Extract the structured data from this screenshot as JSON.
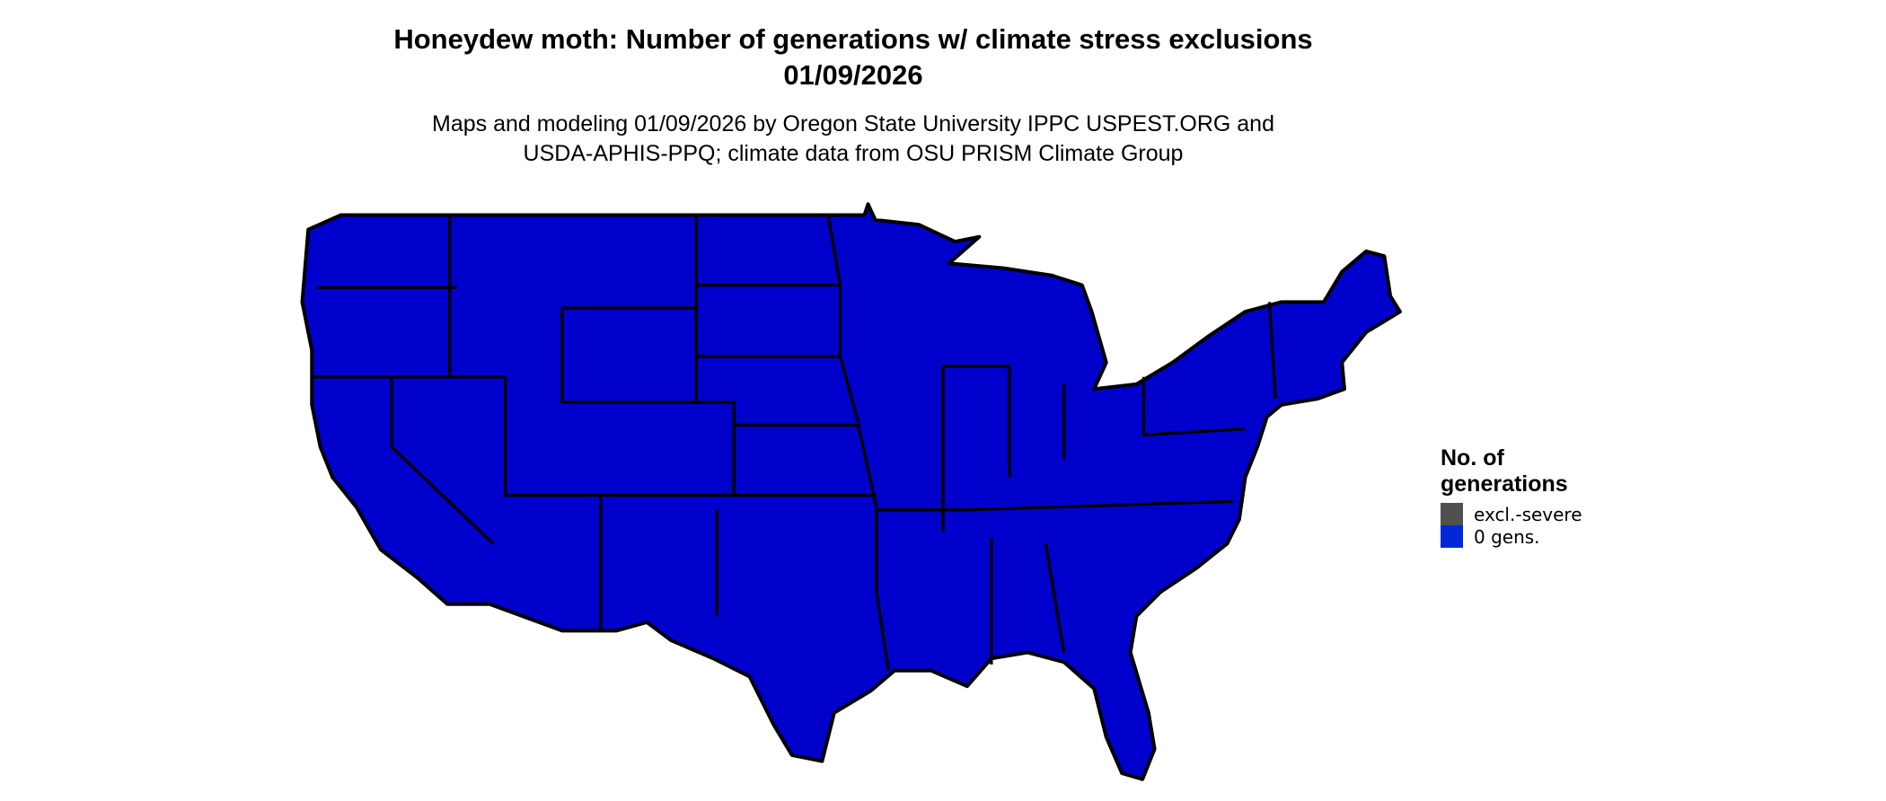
{
  "title": {
    "line1": "Honeydew moth: Number of generations w/ climate stress exclusions",
    "line2": "01/09/2026"
  },
  "subtitle": {
    "line1": "Maps and modeling 01/09/2026 by Oregon State University IPPC USPEST.ORG and",
    "line2": "USDA-APHIS-PPQ; climate data from OSU PRISM Climate Group"
  },
  "map": {
    "region": "Contiguous United States",
    "fill_color": "#0000CC",
    "border_color": "#000000"
  },
  "legend": {
    "title_line1": "No. of",
    "title_line2": "generations",
    "items": [
      {
        "label": "excl.-severe",
        "color": "#505050"
      },
      {
        "label": "0 gens.",
        "color": "#0028D8"
      }
    ]
  }
}
